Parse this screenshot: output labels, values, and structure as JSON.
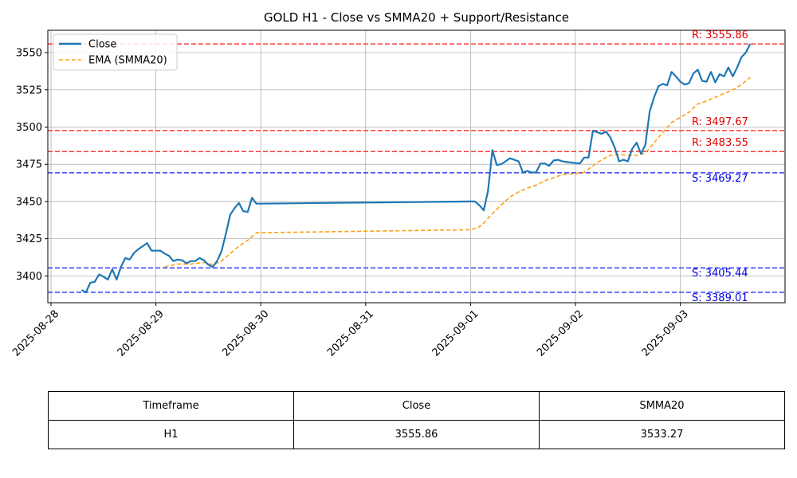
{
  "chart_data": {
    "type": "line",
    "title": "GOLD H1 - Close vs SMMA20 + Support/Resistance",
    "xlabel": "",
    "ylabel": "",
    "ylim": [
      3382,
      3565
    ],
    "x_ticks": [
      "2025-08-28",
      "2025-08-29",
      "2025-08-30",
      "2025-08-31",
      "2025-09-01",
      "2025-09-02",
      "2025-09-03"
    ],
    "y_ticks": [
      3400,
      3425,
      3450,
      3475,
      3500,
      3525,
      3550
    ],
    "grid": true,
    "legend_position": "top-left",
    "colors": {
      "close": "#1f77b4",
      "ema": "#ff9f0f",
      "resistance": "#ff3b3b",
      "support": "#3b3bff"
    },
    "series": [
      {
        "name": "Close",
        "points": [
          [
            "2025-08-28 07:00",
            3390.5
          ],
          [
            "2025-08-28 08:00",
            3389.0
          ],
          [
            "2025-08-28 09:00",
            3395.5
          ],
          [
            "2025-08-28 10:00",
            3396.0
          ],
          [
            "2025-08-28 11:00",
            3401.0
          ],
          [
            "2025-08-28 12:00",
            3399.5
          ],
          [
            "2025-08-28 13:00",
            3397.5
          ],
          [
            "2025-08-28 14:00",
            3404.5
          ],
          [
            "2025-08-28 15:00",
            3397.5
          ],
          [
            "2025-08-28 16:00",
            3406.0
          ],
          [
            "2025-08-28 17:00",
            3412.0
          ],
          [
            "2025-08-28 18:00",
            3411.0
          ],
          [
            "2025-08-28 19:00",
            3415.5
          ],
          [
            "2025-08-28 20:00",
            3418.0
          ],
          [
            "2025-08-28 21:00",
            3420.0
          ],
          [
            "2025-08-28 22:00",
            3422.0
          ],
          [
            "2025-08-28 23:00",
            3417.0
          ],
          [
            "2025-08-29 00:00",
            3417.0
          ],
          [
            "2025-08-29 01:00",
            3417.0
          ],
          [
            "2025-08-29 02:00",
            3415.0
          ],
          [
            "2025-08-29 03:00",
            3413.5
          ],
          [
            "2025-08-29 04:00",
            3410.0
          ],
          [
            "2025-08-29 05:00",
            3411.0
          ],
          [
            "2025-08-29 06:00",
            3410.5
          ],
          [
            "2025-08-29 07:00",
            3408.5
          ],
          [
            "2025-08-29 08:00",
            3410.0
          ],
          [
            "2025-08-29 09:00",
            3410.0
          ],
          [
            "2025-08-29 10:00",
            3412.0
          ],
          [
            "2025-08-29 11:00",
            3410.5
          ],
          [
            "2025-08-29 12:00",
            3407.5
          ],
          [
            "2025-08-29 13:00",
            3406.0
          ],
          [
            "2025-08-29 14:00",
            3410.0
          ],
          [
            "2025-08-29 15:00",
            3416.5
          ],
          [
            "2025-08-29 16:00",
            3428.0
          ],
          [
            "2025-08-29 17:00",
            3441.0
          ],
          [
            "2025-08-29 18:00",
            3445.5
          ],
          [
            "2025-08-29 19:00",
            3449.0
          ],
          [
            "2025-08-29 20:00",
            3443.5
          ],
          [
            "2025-08-29 21:00",
            3443.0
          ],
          [
            "2025-08-29 22:00",
            3452.5
          ],
          [
            "2025-08-29 23:00",
            3448.5
          ],
          [
            "2025-09-01 00:00",
            3450.0
          ],
          [
            "2025-09-01 01:00",
            3450.0
          ],
          [
            "2025-09-01 02:00",
            3447.5
          ],
          [
            "2025-09-01 03:00",
            3444.0
          ],
          [
            "2025-09-01 04:00",
            3457.0
          ],
          [
            "2025-09-01 05:00",
            3484.5
          ],
          [
            "2025-09-01 06:00",
            3474.5
          ],
          [
            "2025-09-01 07:00",
            3475.0
          ],
          [
            "2025-09-01 08:00",
            3477.0
          ],
          [
            "2025-09-01 09:00",
            3479.0
          ],
          [
            "2025-09-01 10:00",
            3478.0
          ],
          [
            "2025-09-01 11:00",
            3477.0
          ],
          [
            "2025-09-01 12:00",
            3469.5
          ],
          [
            "2025-09-01 13:00",
            3470.5
          ],
          [
            "2025-09-01 14:00",
            3469.5
          ],
          [
            "2025-09-01 15:00",
            3469.5
          ],
          [
            "2025-09-01 16:00",
            3475.5
          ],
          [
            "2025-09-01 17:00",
            3475.5
          ],
          [
            "2025-09-01 18:00",
            3474.0
          ],
          [
            "2025-09-01 19:00",
            3477.5
          ],
          [
            "2025-09-01 20:00",
            3478.0
          ],
          [
            "2025-09-01 21:00",
            3477.0
          ],
          [
            "2025-09-01 22:00",
            3476.5
          ],
          [
            "2025-09-02 01:00",
            3475.5
          ],
          [
            "2025-09-02 02:00",
            3479.5
          ],
          [
            "2025-09-02 03:00",
            3479.5
          ],
          [
            "2025-09-02 04:00",
            3497.5
          ],
          [
            "2025-09-02 05:00",
            3496.5
          ],
          [
            "2025-09-02 06:00",
            3495.5
          ],
          [
            "2025-09-02 07:00",
            3497.0
          ],
          [
            "2025-09-02 08:00",
            3493.0
          ],
          [
            "2025-09-02 09:00",
            3486.0
          ],
          [
            "2025-09-02 10:00",
            3477.0
          ],
          [
            "2025-09-02 11:00",
            3478.0
          ],
          [
            "2025-09-02 12:00",
            3477.0
          ],
          [
            "2025-09-02 13:00",
            3485.5
          ],
          [
            "2025-09-02 14:00",
            3489.5
          ],
          [
            "2025-09-02 15:00",
            3482.0
          ],
          [
            "2025-09-02 16:00",
            3488.0
          ],
          [
            "2025-09-02 17:00",
            3510.5
          ],
          [
            "2025-09-02 18:00",
            3520.0
          ],
          [
            "2025-09-02 19:00",
            3527.5
          ],
          [
            "2025-09-02 20:00",
            3529.0
          ],
          [
            "2025-09-02 21:00",
            3528.0
          ],
          [
            "2025-09-02 22:00",
            3537.0
          ],
          [
            "2025-09-02 23:00",
            3534.0
          ],
          [
            "2025-09-03 00:00",
            3530.5
          ],
          [
            "2025-09-03 01:00",
            3528.5
          ],
          [
            "2025-09-03 02:00",
            3529.5
          ],
          [
            "2025-09-03 03:00",
            3536.0
          ],
          [
            "2025-09-03 04:00",
            3538.5
          ],
          [
            "2025-09-03 05:00",
            3531.0
          ],
          [
            "2025-09-03 06:00",
            3530.5
          ],
          [
            "2025-09-03 07:00",
            3537.0
          ],
          [
            "2025-09-03 08:00",
            3530.0
          ],
          [
            "2025-09-03 09:00",
            3535.5
          ],
          [
            "2025-09-03 10:00",
            3534.0
          ],
          [
            "2025-09-03 11:00",
            3540.0
          ],
          [
            "2025-09-03 12:00",
            3534.0
          ],
          [
            "2025-09-03 13:00",
            3540.0
          ],
          [
            "2025-09-03 14:00",
            3547.0
          ],
          [
            "2025-09-03 15:00",
            3550.0
          ],
          [
            "2025-09-03 16:00",
            3555.86
          ]
        ]
      },
      {
        "name": "EMA (SMMA20)",
        "points": [
          [
            "2025-08-29 02:00",
            3406.0
          ],
          [
            "2025-08-29 05:00",
            3408.0
          ],
          [
            "2025-08-29 08:00",
            3408.0
          ],
          [
            "2025-08-29 11:00",
            3409.0
          ],
          [
            "2025-08-29 13:00",
            3407.5
          ],
          [
            "2025-08-29 15:00",
            3410.0
          ],
          [
            "2025-08-29 17:00",
            3415.0
          ],
          [
            "2025-08-29 19:00",
            3420.0
          ],
          [
            "2025-08-29 21:00",
            3424.0
          ],
          [
            "2025-08-29 23:00",
            3429.0
          ],
          [
            "2025-09-01 00:00",
            3431.0
          ],
          [
            "2025-09-01 02:00",
            3433.0
          ],
          [
            "2025-09-01 03:00",
            3435.5
          ],
          [
            "2025-09-01 05:00",
            3442.0
          ],
          [
            "2025-09-01 07:00",
            3447.5
          ],
          [
            "2025-09-01 09:00",
            3453.0
          ],
          [
            "2025-09-01 11:00",
            3456.5
          ],
          [
            "2025-09-01 13:00",
            3459.0
          ],
          [
            "2025-09-01 15:00",
            3461.0
          ],
          [
            "2025-09-01 17:00",
            3464.0
          ],
          [
            "2025-09-01 19:00",
            3466.0
          ],
          [
            "2025-09-01 21:00",
            3468.0
          ],
          [
            "2025-09-01 23:00",
            3468.5
          ],
          [
            "2025-09-02 02:00",
            3469.5
          ],
          [
            "2025-09-02 04:00",
            3474.0
          ],
          [
            "2025-09-02 06:00",
            3478.0
          ],
          [
            "2025-09-02 08:00",
            3481.0
          ],
          [
            "2025-09-02 10:00",
            3481.5
          ],
          [
            "2025-09-02 12:00",
            3481.0
          ],
          [
            "2025-09-02 14:00",
            3481.0
          ],
          [
            "2025-09-02 16:00",
            3482.5
          ],
          [
            "2025-09-02 18:00",
            3489.5
          ],
          [
            "2025-09-02 20:00",
            3496.5
          ],
          [
            "2025-09-02 22:00",
            3503.0
          ],
          [
            "2025-09-03 00:00",
            3506.5
          ],
          [
            "2025-09-03 02:00",
            3510.0
          ],
          [
            "2025-09-03 04:00",
            3515.5
          ],
          [
            "2025-09-03 06:00",
            3517.5
          ],
          [
            "2025-09-03 08:00",
            3520.0
          ],
          [
            "2025-09-03 10:00",
            3522.5
          ],
          [
            "2025-09-03 12:00",
            3525.0
          ],
          [
            "2025-09-03 14:00",
            3528.5
          ],
          [
            "2025-09-03 16:00",
            3533.27
          ]
        ]
      }
    ],
    "levels": [
      {
        "kind": "resistance",
        "value": 3555.86,
        "label": "R: 3555.86"
      },
      {
        "kind": "resistance",
        "value": 3497.67,
        "label": "R: 3497.67"
      },
      {
        "kind": "resistance",
        "value": 3483.55,
        "label": "R: 3483.55"
      },
      {
        "kind": "support",
        "value": 3469.27,
        "label": "S: 3469.27"
      },
      {
        "kind": "support",
        "value": 3405.44,
        "label": "S: 3405.44"
      },
      {
        "kind": "support",
        "value": 3389.01,
        "label": "S: 3389.01"
      }
    ]
  },
  "table": {
    "headers": [
      "Timeframe",
      "Close",
      "SMMA20"
    ],
    "row": [
      "H1",
      "3555.86",
      "3533.27"
    ]
  }
}
